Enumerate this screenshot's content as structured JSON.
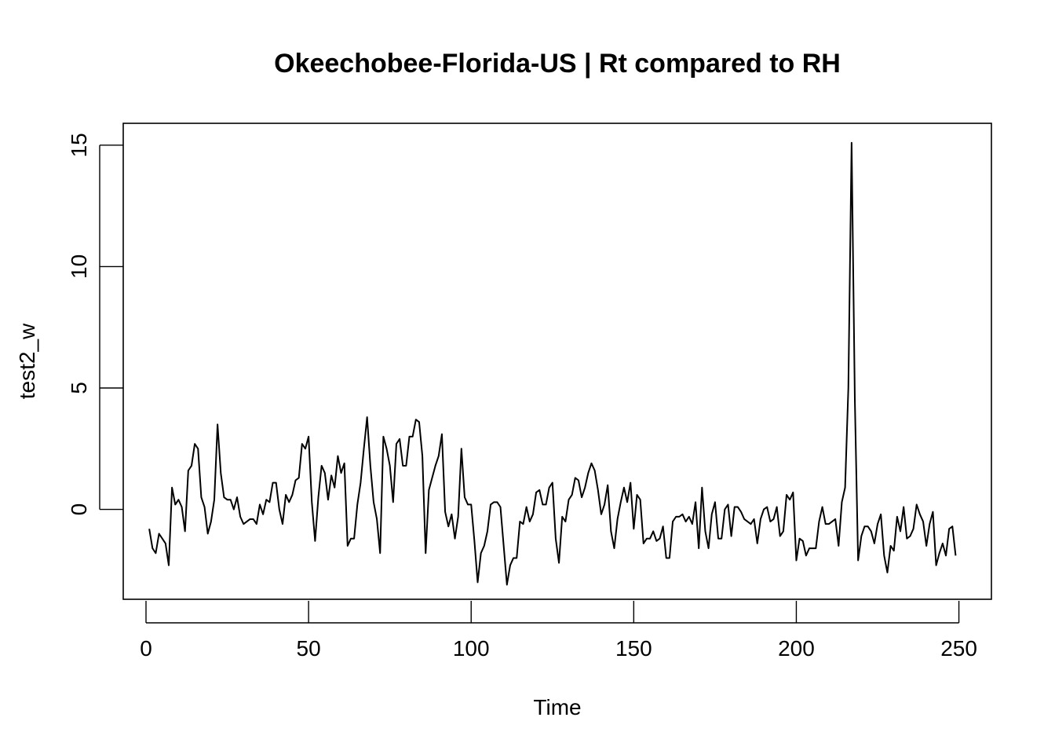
{
  "chart_data": {
    "type": "line",
    "title": "Okeechobee-Florida-US | Rt compared to RH",
    "xlabel": "Time",
    "ylabel": "test2_w",
    "xlim": [
      -7,
      260
    ],
    "ylim": [
      -3.7,
      15.9
    ],
    "x_ticks": [
      0,
      50,
      100,
      150,
      200,
      250
    ],
    "x_tick_labels": [
      "0",
      "50",
      "100",
      "150",
      "200",
      "250"
    ],
    "y_ticks": [
      0,
      5,
      10,
      15
    ],
    "y_tick_labels": [
      "0",
      "5",
      "10",
      "15"
    ],
    "series": [
      {
        "x_start": 1,
        "values": [
          -0.8,
          -1.6,
          -1.8,
          -1.0,
          -1.2,
          -1.4,
          -2.3,
          0.9,
          0.2,
          0.4,
          0.1,
          -0.9,
          1.6,
          1.8,
          2.7,
          2.5,
          0.5,
          0.1,
          -1.0,
          -0.5,
          0.4,
          3.5,
          1.5,
          0.5,
          0.4,
          0.4,
          0.0,
          0.5,
          -0.3,
          -0.6,
          -0.5,
          -0.4,
          -0.4,
          -0.6,
          0.2,
          -0.2,
          0.4,
          0.3,
          1.1,
          1.1,
          0.0,
          -0.6,
          0.6,
          0.3,
          0.6,
          1.2,
          1.3,
          2.7,
          2.5,
          3.0,
          0.3,
          -1.3,
          0.5,
          1.8,
          1.5,
          0.4,
          1.4,
          0.9,
          2.2,
          1.5,
          1.9,
          -1.5,
          -1.2,
          -1.2,
          0.2,
          1.1,
          2.5,
          3.8,
          1.8,
          0.3,
          -0.4,
          -1.8,
          3.0,
          2.5,
          1.8,
          0.3,
          2.7,
          2.9,
          1.8,
          1.8,
          3.0,
          3.0,
          3.7,
          3.6,
          2.2,
          -1.8,
          0.8,
          1.3,
          1.8,
          2.2,
          3.1,
          -0.1,
          -0.7,
          -0.2,
          -1.2,
          -0.3,
          2.5,
          0.5,
          0.2,
          0.2,
          -1.3,
          -3.0,
          -1.8,
          -1.5,
          -0.9,
          0.2,
          0.3,
          0.3,
          0.1,
          -1.5,
          -3.1,
          -2.3,
          -2.0,
          -2.0,
          -0.5,
          -0.6,
          0.1,
          -0.5,
          -0.2,
          0.7,
          0.8,
          0.2,
          0.2,
          0.9,
          1.1,
          -1.2,
          -2.2,
          -0.3,
          -0.5,
          0.4,
          0.6,
          1.3,
          1.2,
          0.5,
          0.9,
          1.5,
          1.9,
          1.6,
          0.8,
          -0.2,
          0.2,
          1.0,
          -0.9,
          -1.6,
          -0.4,
          0.3,
          0.9,
          0.3,
          1.1,
          -0.8,
          0.6,
          0.4,
          -1.4,
          -1.2,
          -1.2,
          -0.9,
          -1.3,
          -1.2,
          -0.7,
          -2.0,
          -2.0,
          -0.5,
          -0.3,
          -0.3,
          -0.2,
          -0.5,
          -0.3,
          -0.6,
          0.3,
          -1.6,
          0.9,
          -0.9,
          -1.6,
          -0.2,
          0.3,
          -1.2,
          -1.2,
          0.0,
          0.2,
          -1.1,
          0.1,
          0.1,
          -0.1,
          -0.4,
          -0.5,
          -0.6,
          -0.4,
          -1.4,
          -0.4,
          0.0,
          0.1,
          -0.5,
          -0.4,
          0.1,
          -1.1,
          -0.9,
          0.6,
          0.4,
          0.7,
          -2.1,
          -1.2,
          -1.3,
          -1.9,
          -1.6,
          -1.6,
          -1.6,
          -0.5,
          0.1,
          -0.6,
          -0.6,
          -0.5,
          -0.4,
          -1.5,
          0.3,
          0.9,
          5.0,
          15.1,
          4.5,
          -2.1,
          -1.1,
          -0.7,
          -0.7,
          -0.9,
          -1.4,
          -0.6,
          -0.2,
          -1.9,
          -2.6,
          -1.5,
          -1.7,
          -0.3,
          -0.9,
          0.1,
          -1.2,
          -1.1,
          -0.8,
          0.2,
          -0.2,
          -0.5,
          -1.5,
          -0.6,
          -0.1,
          -2.3,
          -1.8,
          -1.4,
          -1.9,
          -0.8,
          -0.7,
          -1.9
        ]
      }
    ],
    "grid": false,
    "legend": "none"
  }
}
